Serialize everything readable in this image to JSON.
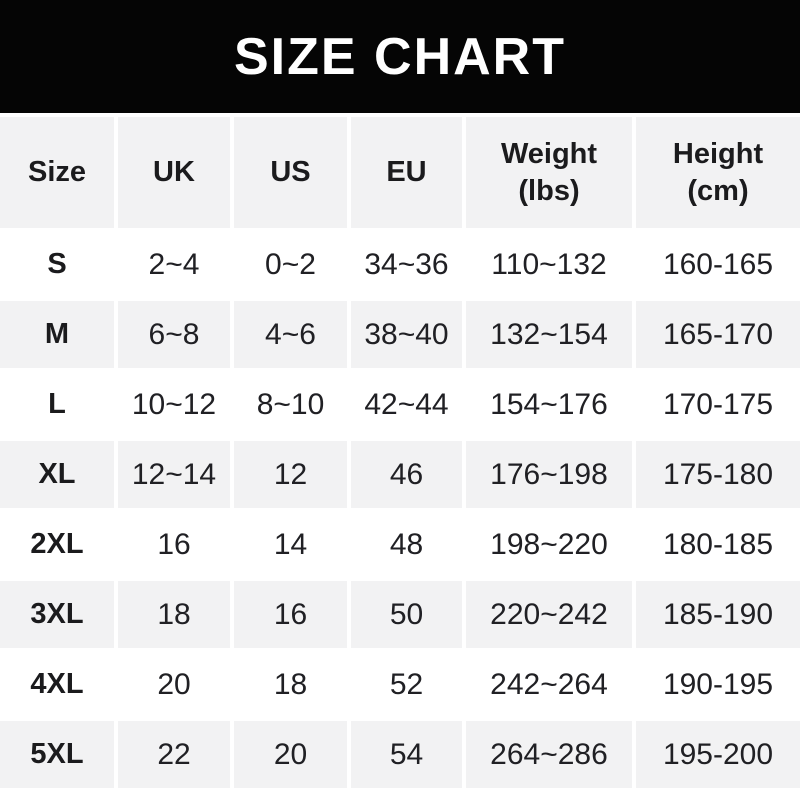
{
  "title": "SIZE CHART",
  "colors": {
    "title_bar_bg": "#050505",
    "title_text": "#ffffff",
    "row_alt_bg": "#f2f2f3",
    "row_bg": "#ffffff",
    "text": "#202024"
  },
  "chart_data": {
    "type": "table",
    "title": "SIZE CHART",
    "columns": [
      "Size",
      "UK",
      "US",
      "EU",
      "Weight\n(lbs)",
      "Height\n(cm)"
    ],
    "rows": [
      [
        "S",
        "2~4",
        "0~2",
        "34~36",
        "110~132",
        "160-165"
      ],
      [
        "M",
        "6~8",
        "4~6",
        "38~40",
        "132~154",
        "165-170"
      ],
      [
        "L",
        "10~12",
        "8~10",
        "42~44",
        "154~176",
        "170-175"
      ],
      [
        "XL",
        "12~14",
        "12",
        "46",
        "176~198",
        "175-180"
      ],
      [
        "2XL",
        "16",
        "14",
        "48",
        "198~220",
        "180-185"
      ],
      [
        "3XL",
        "18",
        "16",
        "50",
        "220~242",
        "185-190"
      ],
      [
        "4XL",
        "20",
        "18",
        "52",
        "242~264",
        "190-195"
      ],
      [
        "5XL",
        "22",
        "20",
        "54",
        "264~286",
        "195-200"
      ]
    ],
    "layout": {
      "header_row_shaded": true,
      "alternating_rows": "white/gray starting white",
      "weight_separator": "~",
      "height_separator": "-"
    }
  }
}
